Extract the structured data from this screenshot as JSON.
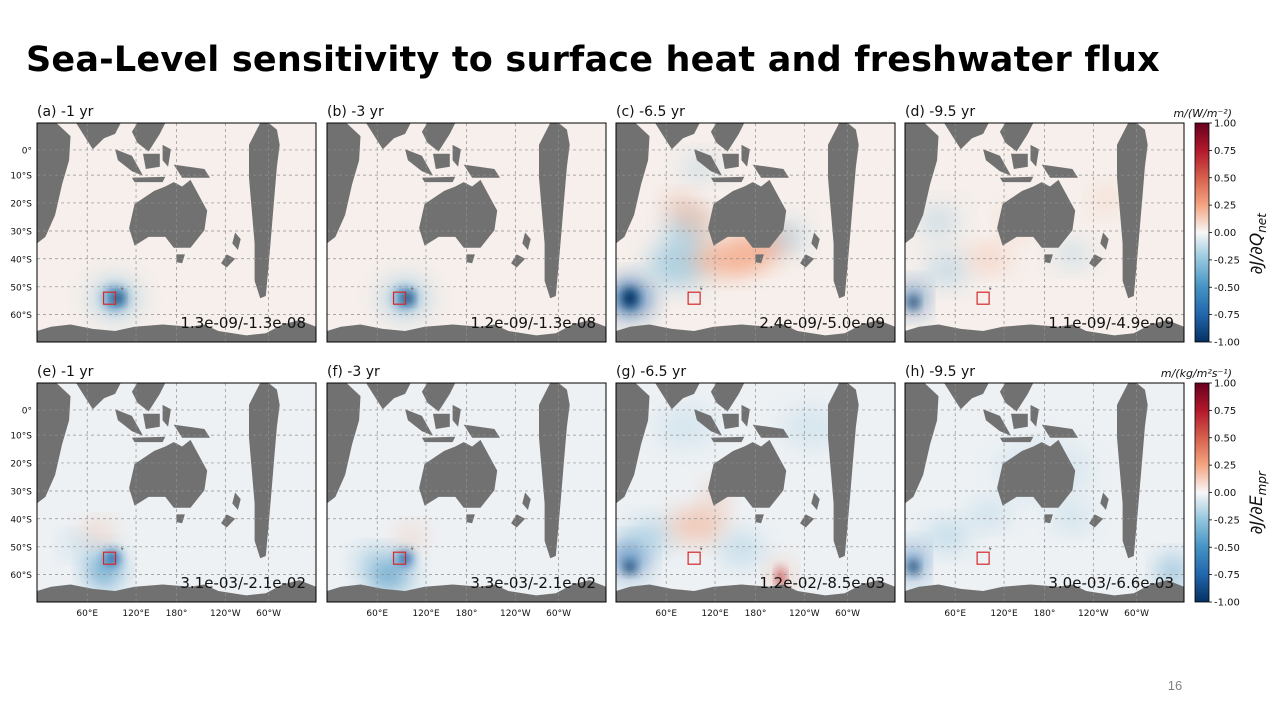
{
  "slide": {
    "title": "Sea-Level sensitivity to surface heat and freshwater flux",
    "page_number": "16"
  },
  "colors": {
    "land": "#717171",
    "ocean_positive_tint": "#f6efeb",
    "ocean_negative_tint": "#edf1f4",
    "target_box": "#d62728",
    "colormap": "RdBu_r"
  },
  "chart_data": [
    {
      "type": "heatmap",
      "panels": [
        {
          "label": "(a) -1 yr",
          "range_text": "1.3e-09/-1.3e-08"
        },
        {
          "label": "(b) -3 yr",
          "range_text": "1.2e-09/-1.3e-08"
        },
        {
          "label": "(c) -6.5 yr",
          "range_text": "2.4e-09/-5.0e-09"
        },
        {
          "label": "(d) -9.5 yr",
          "range_text": "1.1e-09/-4.9e-09"
        }
      ],
      "colorbar": {
        "units": "m/(W/m⁻²)",
        "label": "∂J/∂Q",
        "label_sub": "net",
        "ticks": [
          "1.00",
          "0.75",
          "0.50",
          "0.25",
          "0.00",
          "-0.25",
          "-0.50",
          "-0.75",
          "-1.00"
        ],
        "range": [
          -1,
          1
        ]
      },
      "ylabels": [
        "0°",
        "10°S",
        "20°S",
        "30°S",
        "40°S",
        "50°S",
        "60°S"
      ],
      "xlabels": []
    },
    {
      "type": "heatmap",
      "panels": [
        {
          "label": "(e) -1 yr",
          "range_text": "3.1e-03/-2.1e-02"
        },
        {
          "label": "(f) -3 yr",
          "range_text": "3.3e-03/-2.1e-02"
        },
        {
          "label": "(g) -6.5 yr",
          "range_text": "1.2e-02/-8.5e-03"
        },
        {
          "label": "(h) -9.5 yr",
          "range_text": "3.0e-03/-6.6e-03"
        }
      ],
      "colorbar": {
        "units": "m/(kg/m²s⁻¹)",
        "label": "∂J/∂E",
        "label_sub": "mpr",
        "ticks": [
          "1.00",
          "0.75",
          "0.50",
          "0.25",
          "0.00",
          "-0.25",
          "-0.50",
          "-0.75",
          "-1.00"
        ],
        "range": [
          -1,
          1
        ]
      },
      "ylabels": [
        "0°",
        "10°S",
        "20°S",
        "30°S",
        "40°S",
        "50°S",
        "60°S"
      ],
      "xlabels": [
        "60°E",
        "120°E",
        "180°",
        "120°W",
        "60°W"
      ]
    }
  ]
}
